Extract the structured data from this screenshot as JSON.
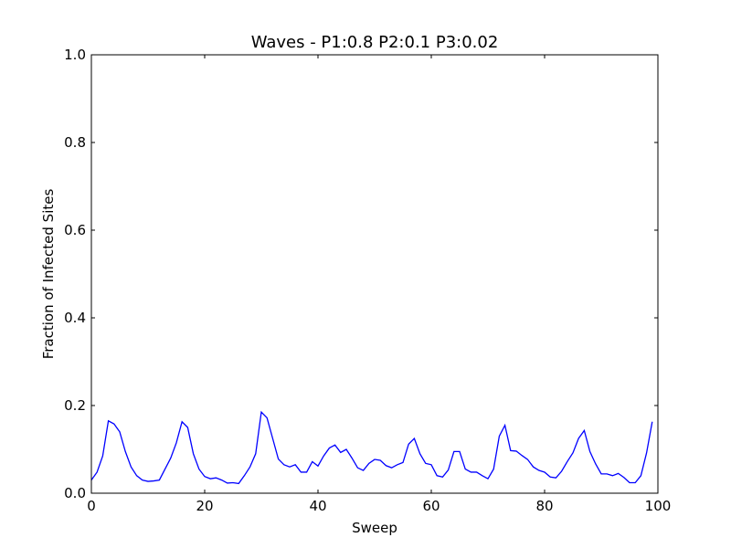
{
  "chart_data": {
    "type": "line",
    "title": "Waves - P1:0.8 P2:0.1 P3:0.02",
    "xlabel": "Sweep",
    "ylabel": "Fraction of Infected Sites",
    "xlim": [
      0,
      100
    ],
    "ylim": [
      0,
      1.0
    ],
    "xticks": [
      "0",
      "20",
      "40",
      "60",
      "80",
      "100"
    ],
    "yticks": [
      "0.0",
      "0.2",
      "0.4",
      "0.6",
      "0.8",
      "1.0"
    ],
    "grid": false,
    "legend": "none",
    "line_color": "#0000ff",
    "series": [
      {
        "x": [
          0,
          1,
          2,
          3,
          4,
          5,
          6,
          7,
          8,
          9,
          10,
          11,
          12,
          13,
          14,
          15,
          16,
          17,
          18,
          19,
          20,
          21,
          22,
          23,
          24,
          25,
          26,
          27,
          28,
          29,
          30,
          31,
          32,
          33,
          34,
          35,
          36,
          37,
          38,
          39,
          40,
          41,
          42,
          43,
          44,
          45,
          46,
          47,
          48,
          49,
          50,
          51,
          52,
          53,
          54,
          55,
          56,
          57,
          58,
          59,
          60,
          61,
          62,
          63,
          64,
          65,
          66,
          67,
          68,
          69,
          70,
          71,
          72,
          73,
          74,
          75,
          76,
          77,
          78,
          79,
          80,
          81,
          82,
          83,
          84,
          85,
          86,
          87,
          88,
          89,
          90,
          91,
          92,
          93,
          94,
          95,
          96,
          97,
          98,
          99
        ],
        "y": [
          0.03,
          0.048,
          0.085,
          0.165,
          0.158,
          0.14,
          0.095,
          0.06,
          0.04,
          0.03,
          0.027,
          0.028,
          0.03,
          0.055,
          0.08,
          0.115,
          0.163,
          0.15,
          0.09,
          0.055,
          0.038,
          0.033,
          0.035,
          0.03,
          0.023,
          0.024,
          0.022,
          0.04,
          0.06,
          0.09,
          0.185,
          0.172,
          0.125,
          0.078,
          0.065,
          0.06,
          0.065,
          0.048,
          0.048,
          0.072,
          0.062,
          0.085,
          0.103,
          0.11,
          0.093,
          0.1,
          0.08,
          0.058,
          0.052,
          0.068,
          0.077,
          0.075,
          0.063,
          0.058,
          0.065,
          0.07,
          0.112,
          0.125,
          0.09,
          0.068,
          0.065,
          0.04,
          0.037,
          0.053,
          0.095,
          0.095,
          0.055,
          0.048,
          0.048,
          0.04,
          0.033,
          0.055,
          0.13,
          0.155,
          0.097,
          0.096,
          0.086,
          0.077,
          0.06,
          0.052,
          0.048,
          0.037,
          0.035,
          0.05,
          0.072,
          0.092,
          0.125,
          0.143,
          0.095,
          0.067,
          0.044,
          0.044,
          0.04,
          0.045,
          0.036,
          0.024,
          0.024,
          0.04,
          0.092,
          0.163
        ]
      }
    ]
  }
}
